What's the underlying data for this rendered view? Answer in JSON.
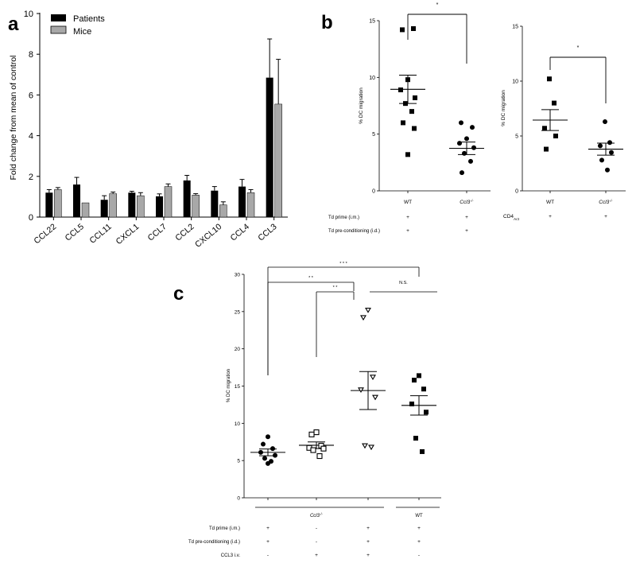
{
  "panels": {
    "a": {
      "letter": "a",
      "chart_data": {
        "type": "bar",
        "ylabel": "Fold change from mean of control",
        "ylim": [
          0,
          10
        ],
        "yticks": [
          0,
          2,
          4,
          6,
          8,
          10
        ],
        "legend_position": "top-left",
        "categories": [
          "CCL22",
          "CCL5",
          "CCL11",
          "CXCL1",
          "CCL7",
          "CCL2",
          "CXCL10",
          "CCL4",
          "CCL3"
        ],
        "series": [
          {
            "name": "Patients",
            "color": "#000000",
            "values": [
              1.2,
              1.6,
              0.85,
              1.2,
              1.02,
              1.8,
              1.3,
              1.5,
              6.85
            ],
            "errors": [
              0.15,
              0.35,
              0.2,
              0.07,
              0.12,
              0.25,
              0.2,
              0.35,
              1.9
            ]
          },
          {
            "name": "Mice",
            "color": "#a8a8a8",
            "values": [
              1.35,
              0.7,
              1.15,
              1.05,
              1.5,
              1.08,
              0.6,
              1.2,
              5.55
            ],
            "errors": [
              0.1,
              0.0,
              0.08,
              0.15,
              0.13,
              0.07,
              0.15,
              0.15,
              2.2
            ]
          }
        ]
      }
    },
    "b1": {
      "letter": "b",
      "chart_data": {
        "type": "scatter",
        "ylabel": "% DC migration",
        "ylim": [
          0,
          15
        ],
        "yticks": [
          0,
          5,
          10,
          15
        ],
        "categories": [
          "WT",
          "Ccl3-/-"
        ],
        "category_display": [
          {
            "main": "WT",
            "sup": ""
          },
          {
            "main": "Ccl3",
            "sup": "-/-"
          }
        ],
        "groups": [
          {
            "marker": "square",
            "points": [
              14.2,
              14.3,
              9.8,
              8.9,
              8.2,
              7.7,
              7.0,
              6.0,
              5.5,
              3.2
            ],
            "mean": 8.95,
            "sem": 1.25
          },
          {
            "marker": "circle",
            "points": [
              6.0,
              5.6,
              4.6,
              4.2,
              3.8,
              3.3,
              2.6,
              1.6
            ],
            "mean": 3.75,
            "sem": 0.55
          }
        ],
        "significance": [
          {
            "from": 0,
            "to": 1,
            "label": "*"
          }
        ],
        "condition_rows": [
          {
            "label": "Td prime (i.m.)",
            "values": [
              "+",
              "+"
            ]
          },
          {
            "label": "Td pre-conditioning (i.d.)",
            "values": [
              "+",
              "+"
            ]
          }
        ]
      }
    },
    "b2": {
      "chart_data": {
        "type": "scatter",
        "ylabel": "% DC migration",
        "ylim": [
          0,
          15
        ],
        "yticks": [
          0,
          5,
          10,
          15
        ],
        "categories": [
          "WT",
          "Ccl3-/-"
        ],
        "category_display": [
          {
            "main": "WT",
            "sup": ""
          },
          {
            "main": "Ccl3",
            "sup": "-/-"
          }
        ],
        "groups": [
          {
            "marker": "square",
            "points": [
              10.2,
              8.0,
              5.7,
              5.0,
              3.8
            ],
            "mean": 6.45,
            "sem": 0.95
          },
          {
            "marker": "circle",
            "points": [
              6.3,
              4.4,
              4.1,
              3.5,
              2.8,
              1.9
            ],
            "mean": 3.8,
            "sem": 0.55
          }
        ],
        "significance": [
          {
            "from": 0,
            "to": 1,
            "label": "*"
          }
        ],
        "condition_rows": [
          {
            "label_main": "CD4",
            "label_sub": "Act",
            "values": [
              "+",
              "+"
            ]
          }
        ]
      }
    },
    "c": {
      "letter": "c",
      "chart_data": {
        "type": "scatter",
        "ylabel": "% DC migration",
        "ylim": [
          0,
          30
        ],
        "yticks": [
          0,
          5,
          10,
          15,
          20,
          25,
          30
        ],
        "groups": [
          {
            "marker": "circle",
            "points": [
              8.2,
              7.2,
              6.6,
              6.1,
              5.7,
              5.3,
              4.9,
              4.6
            ],
            "mean": 6.1,
            "sem": 0.45
          },
          {
            "marker": "open-square",
            "points": [
              8.8,
              8.5,
              7.0,
              6.7,
              6.6,
              6.4,
              5.6
            ],
            "mean": 7.05,
            "sem": 0.45
          },
          {
            "marker": "open-triangle",
            "points": [
              25.2,
              24.2,
              16.2,
              14.5,
              13.5,
              7.0,
              6.8
            ],
            "mean": 14.4,
            "sem": 2.55
          },
          {
            "marker": "square",
            "points": [
              16.4,
              15.8,
              14.6,
              12.6,
              11.5,
              8.0,
              6.2
            ],
            "mean": 12.4,
            "sem": 1.3
          }
        ],
        "significance": [
          {
            "from": 0,
            "to": 3,
            "label": "* * *"
          },
          {
            "from": 0,
            "to": 2,
            "label": "* *"
          },
          {
            "from": 1,
            "to": 2,
            "label": "* *"
          },
          {
            "from": 2,
            "to": 3,
            "label": "N.S."
          }
        ],
        "group_headers": [
          {
            "label_main": "Ccl3",
            "label_sup": "-/-",
            "from": 0,
            "to": 2
          },
          {
            "label_main": "WT",
            "label_sup": "",
            "from": 3,
            "to": 3
          }
        ],
        "condition_rows": [
          {
            "label": "Td prime (i.m.)",
            "values": [
              "+",
              "-",
              "+",
              "+"
            ]
          },
          {
            "label": "Td pre-conditioning (i.d.)",
            "values": [
              "+",
              "-",
              "+",
              "+"
            ]
          },
          {
            "label": "CCL3 i.v.",
            "values": [
              "-",
              "+",
              "+",
              "-"
            ]
          }
        ]
      }
    }
  }
}
